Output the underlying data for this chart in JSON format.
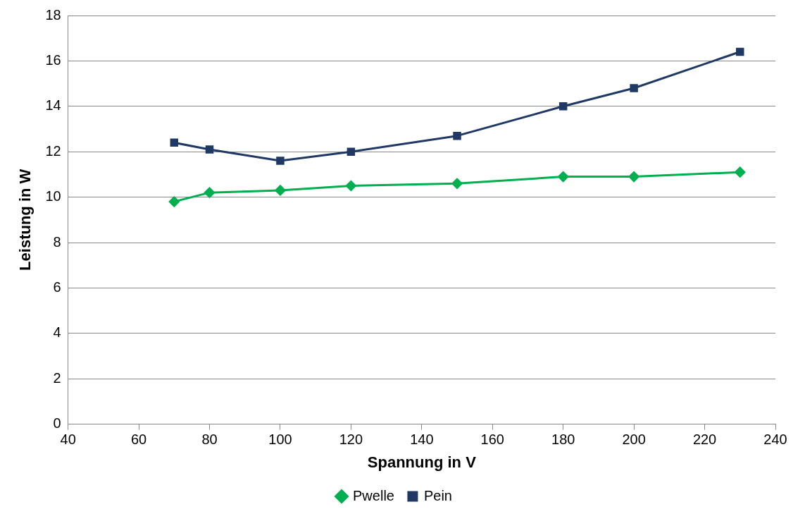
{
  "chart_data": {
    "type": "line",
    "xlabel": "Spannung in V",
    "ylabel": "Leistung in W",
    "x": [
      70,
      80,
      100,
      120,
      150,
      180,
      200,
      230
    ],
    "series": [
      {
        "name": "Pwelle",
        "color": "#00b050",
        "marker": "diamond",
        "values": [
          9.8,
          10.2,
          10.3,
          10.5,
          10.6,
          10.9,
          10.9,
          11.1
        ]
      },
      {
        "name": "Pein",
        "color": "#1f3864",
        "marker": "square",
        "values": [
          12.4,
          12.1,
          11.6,
          12.0,
          12.7,
          14.0,
          14.8,
          16.4
        ]
      }
    ],
    "xlim": [
      40,
      240
    ],
    "xticks": [
      40,
      60,
      80,
      100,
      120,
      140,
      160,
      180,
      200,
      220,
      240
    ],
    "ylim": [
      0,
      18
    ],
    "yticks": [
      0,
      2,
      4,
      6,
      8,
      10,
      12,
      14,
      16,
      18
    ],
    "grid": "y",
    "legend": "bottom",
    "line_style": "solid"
  }
}
